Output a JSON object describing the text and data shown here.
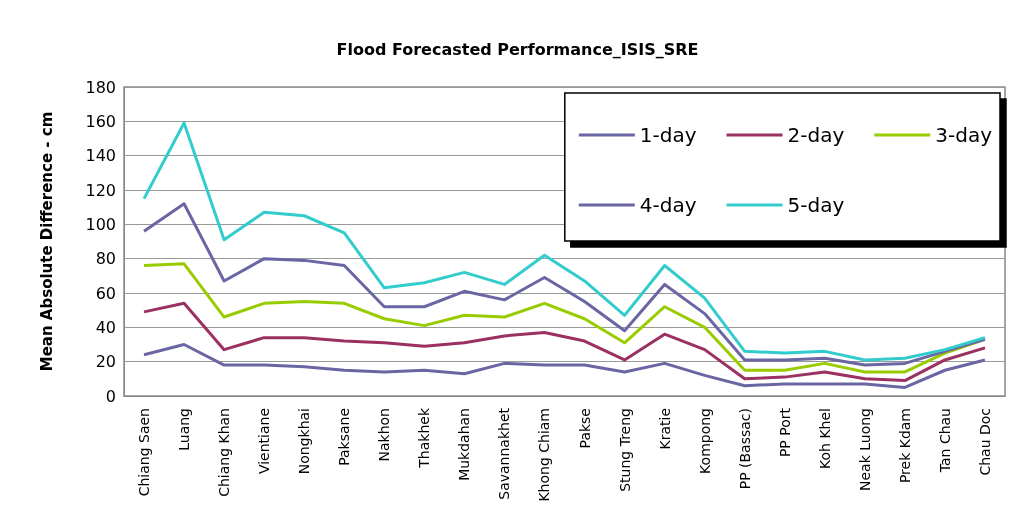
{
  "chart_data": {
    "type": "line",
    "title": "Flood Forecasted Performance_ISIS_SRE",
    "ylabel": "Mean Absolute Difference - cm",
    "categories": [
      "Chiang Saen",
      "Luang",
      "Chiang Khan",
      "Vientiane",
      "Nongkhai",
      "Paksane",
      "Nakhon",
      "Thakhek",
      "Mukdahan",
      "Savannakhet",
      "Khong Chiam",
      "Pakse",
      "Stung Treng",
      "Kratie",
      "Kompong",
      "PP (Bassac)",
      "PP Port",
      "Koh Khel",
      "Neak Luong",
      "Prek Kdam",
      "Tan Chau",
      "Chau Doc"
    ],
    "series": [
      {
        "name": "1-day",
        "color": "#6a66a3",
        "values": [
          24,
          30,
          18,
          18,
          17,
          15,
          14,
          15,
          13,
          19,
          18,
          18,
          14,
          19,
          12,
          6,
          7,
          7,
          7,
          5,
          15,
          21
        ]
      },
      {
        "name": "2-day",
        "color": "#9b3063",
        "values": [
          49,
          54,
          27,
          34,
          34,
          32,
          31,
          29,
          31,
          35,
          37,
          32,
          21,
          36,
          27,
          10,
          11,
          14,
          10,
          9,
          21,
          28
        ]
      },
      {
        "name": "3-day",
        "color": "#99cc00",
        "values": [
          76,
          77,
          46,
          54,
          55,
          54,
          45,
          41,
          47,
          46,
          54,
          45,
          31,
          52,
          40,
          15,
          15,
          19,
          14,
          14,
          25,
          33
        ]
      },
      {
        "name": "4-day",
        "color": "#6a66a3",
        "values": [
          96,
          112,
          67,
          80,
          79,
          76,
          52,
          52,
          61,
          56,
          69,
          55,
          38,
          65,
          48,
          21,
          21,
          22,
          18,
          19,
          26,
          33
        ]
      },
      {
        "name": "5-day",
        "color": "#33cccc",
        "values": [
          115,
          159,
          91,
          107,
          105,
          95,
          63,
          66,
          72,
          65,
          82,
          67,
          47,
          76,
          57,
          26,
          25,
          26,
          21,
          22,
          27,
          34
        ]
      }
    ],
    "ylim": [
      0,
      180
    ],
    "yticks": [
      0,
      20,
      40,
      60,
      80,
      100,
      120,
      140,
      160,
      180
    ],
    "grid": "y",
    "legend": "top right",
    "marker": "none",
    "line_style": "solid"
  }
}
